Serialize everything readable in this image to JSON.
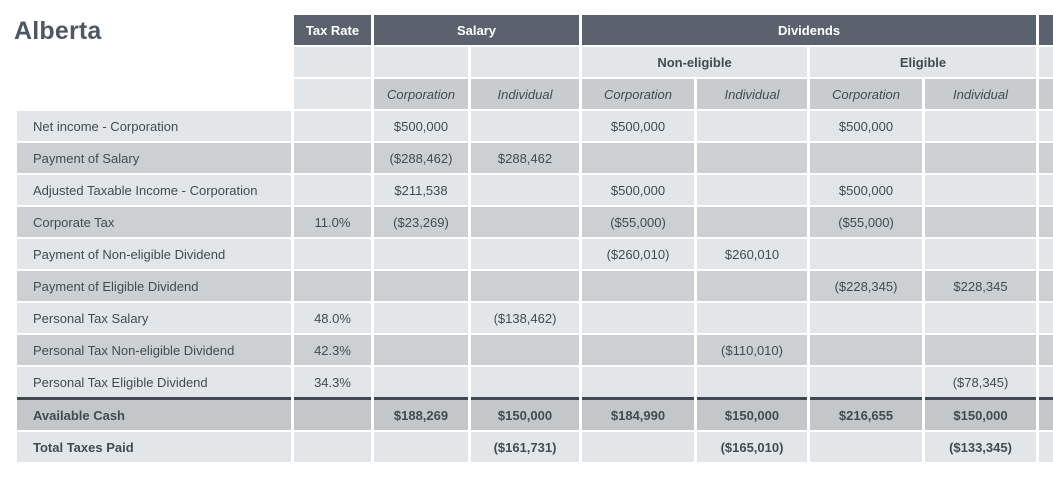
{
  "title": "Alberta",
  "colors": {
    "header_dark": "#5a636d",
    "header_text": "#ffffff",
    "row_light": "#e3e6e8",
    "row_dark": "#cdd0d2",
    "entity_header": "#c9ccce",
    "total_row": "#c3c7c9",
    "divider": "#404b55",
    "text": "#414c55",
    "title": "#4d5864"
  },
  "table": {
    "column_groups": {
      "tax_rate": "Tax Rate",
      "salary": "Salary",
      "dividends": "Dividends"
    },
    "subgroups": {
      "non_eligible": "Non-eligible",
      "eligible": "Eligible"
    },
    "entity_headers": {
      "corporation": "Corporation",
      "individual": "Individual"
    },
    "columns": [
      "tax-rate",
      "salary-corporation",
      "salary-individual",
      "noneligible-corporation",
      "noneligible-individual",
      "eligible-corporation",
      "eligible-individual"
    ],
    "rows": [
      {
        "label": "Net income - Corporation",
        "values": [
          "",
          "$500,000",
          "",
          "$500,000",
          "",
          "$500,000",
          ""
        ],
        "emphasis": false,
        "divider_above": false
      },
      {
        "label": "Payment of Salary",
        "values": [
          "",
          "($288,462)",
          "$288,462",
          "",
          "",
          "",
          ""
        ],
        "emphasis": false,
        "divider_above": false
      },
      {
        "label": "Adjusted Taxable Income - Corporation",
        "values": [
          "",
          "$211,538",
          "",
          "$500,000",
          "",
          "$500,000",
          ""
        ],
        "emphasis": false,
        "divider_above": false
      },
      {
        "label": "Corporate Tax",
        "values": [
          "11.0%",
          "($23,269)",
          "",
          "($55,000)",
          "",
          "($55,000)",
          ""
        ],
        "emphasis": false,
        "divider_above": false
      },
      {
        "label": "Payment of Non-eligible Dividend",
        "values": [
          "",
          "",
          "",
          "($260,010)",
          "$260,010",
          "",
          ""
        ],
        "emphasis": false,
        "divider_above": false
      },
      {
        "label": "Payment of Eligible Dividend",
        "values": [
          "",
          "",
          "",
          "",
          "",
          "($228,345)",
          "$228,345"
        ],
        "emphasis": false,
        "divider_above": false
      },
      {
        "label": "Personal Tax Salary",
        "values": [
          "48.0%",
          "",
          "($138,462)",
          "",
          "",
          "",
          ""
        ],
        "emphasis": false,
        "divider_above": false
      },
      {
        "label": "Personal Tax Non-eligible Dividend",
        "values": [
          "42.3%",
          "",
          "",
          "",
          "($110,010)",
          "",
          ""
        ],
        "emphasis": false,
        "divider_above": false
      },
      {
        "label": "Personal Tax Eligible Dividend",
        "values": [
          "34.3%",
          "",
          "",
          "",
          "",
          "",
          "($78,345)"
        ],
        "emphasis": false,
        "divider_above": false
      },
      {
        "label": "Available Cash",
        "values": [
          "",
          "$188,269",
          "$150,000",
          "$184,990",
          "$150,000",
          "$216,655",
          "$150,000"
        ],
        "emphasis": true,
        "divider_above": true
      },
      {
        "label": "Total Taxes Paid",
        "values": [
          "",
          "",
          "($161,731)",
          "",
          "($165,010)",
          "",
          "($133,345)"
        ],
        "emphasis": true,
        "divider_above": false
      }
    ]
  }
}
